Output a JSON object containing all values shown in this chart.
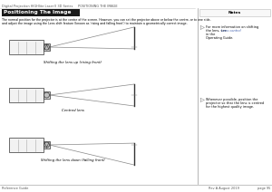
{
  "page_header_left": "Digital Projection HIGHlite Laser II 3D Series",
  "page_header_center": "POSITIONING THE IMAGE",
  "section_title": "Positioning The Image",
  "body_line1": "The normal position for the projector is at the centre of the screen. However, you can set the projector above or below the centre, or to one side,",
  "body_line2": "and adjust the image using the Lens shift feature (known as ‘rising and falling front’) to maintain a geometrically correct image.",
  "diagram_labels": [
    "Shifting the lens up (rising front)",
    "Centred lens",
    "Shifting the lens down (falling front)"
  ],
  "lens_offsets": [
    0.35,
    0.0,
    -0.35
  ],
  "note1_lines": [
    "For more information on shifting",
    "the lens, see ",
    "Lens control",
    " in the",
    "Operating Guide."
  ],
  "note2_lines": [
    "Whenever possible, position the",
    "projector so that the lens is centred",
    "for the highest quality image."
  ],
  "footer_left": "Reference Guide",
  "footer_right": "Rev A August 2019",
  "footer_page": "page 95",
  "bg_color": "#ffffff",
  "text_color": "#000000",
  "gray_text": "#555555",
  "dark_bg": "#1a1a1a",
  "white_text": "#ffffff",
  "link_color": "#3355aa",
  "projector_fill": "#f2f2f2",
  "projector_edge": "#333333",
  "beam_color": "#888888",
  "screen_fill": "#e8e8e8",
  "divider_color": "#999999",
  "note_box_fill": "#f8f8f8",
  "note_box_edge": "#bbbbbb"
}
